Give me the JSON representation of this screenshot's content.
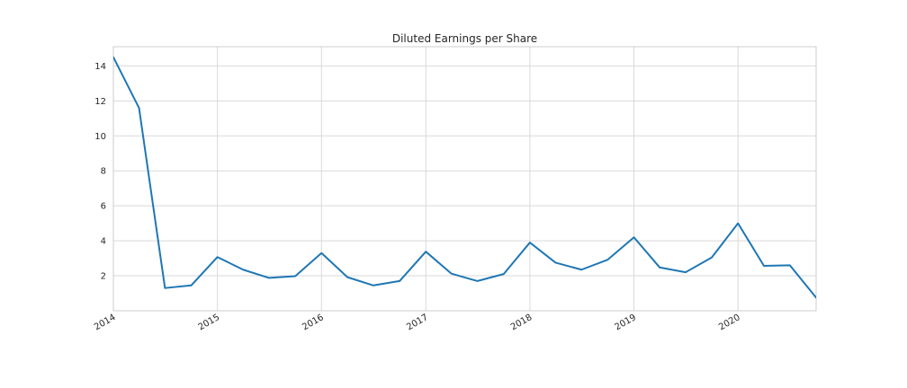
{
  "chart_data": {
    "type": "line",
    "title": "Diluted Earnings per Share",
    "xlabel": "",
    "ylabel": "",
    "x": [
      "2014-01-01",
      "2014-04-01",
      "2014-07-01",
      "2014-10-01",
      "2015-01-01",
      "2015-04-01",
      "2015-07-01",
      "2015-10-01",
      "2016-01-01",
      "2016-04-01",
      "2016-07-01",
      "2016-10-01",
      "2017-01-01",
      "2017-04-01",
      "2017-07-01",
      "2017-10-01",
      "2018-01-01",
      "2018-04-01",
      "2018-07-01",
      "2018-10-01",
      "2019-01-01",
      "2019-04-01",
      "2019-07-01",
      "2019-10-01",
      "2020-01-01",
      "2020-04-01",
      "2020-07-01",
      "2020-10-01"
    ],
    "series": [
      {
        "name": "",
        "color": "#1f77b4",
        "values": [
          14.5,
          11.6,
          1.3,
          1.45,
          3.07,
          2.35,
          1.88,
          1.98,
          3.3,
          1.92,
          1.45,
          1.7,
          3.38,
          2.12,
          1.7,
          2.1,
          3.9,
          2.75,
          2.35,
          2.92,
          4.2,
          2.48,
          2.2,
          3.05,
          5.0,
          2.57,
          2.6,
          0.75
        ]
      }
    ],
    "xlim": [
      "2014-01-01",
      "2020-10-01"
    ],
    "ylim": [
      0,
      15.1
    ],
    "xticks": [
      {
        "value": "2014-01-01",
        "label": "2014"
      },
      {
        "value": "2015-01-01",
        "label": "2015"
      },
      {
        "value": "2016-01-01",
        "label": "2016"
      },
      {
        "value": "2017-01-01",
        "label": "2017"
      },
      {
        "value": "2018-01-01",
        "label": "2018"
      },
      {
        "value": "2019-01-01",
        "label": "2019"
      },
      {
        "value": "2020-01-01",
        "label": "2020"
      }
    ],
    "yticks": [
      2,
      4,
      6,
      8,
      10,
      12,
      14
    ],
    "grid": true,
    "legend": "none"
  }
}
